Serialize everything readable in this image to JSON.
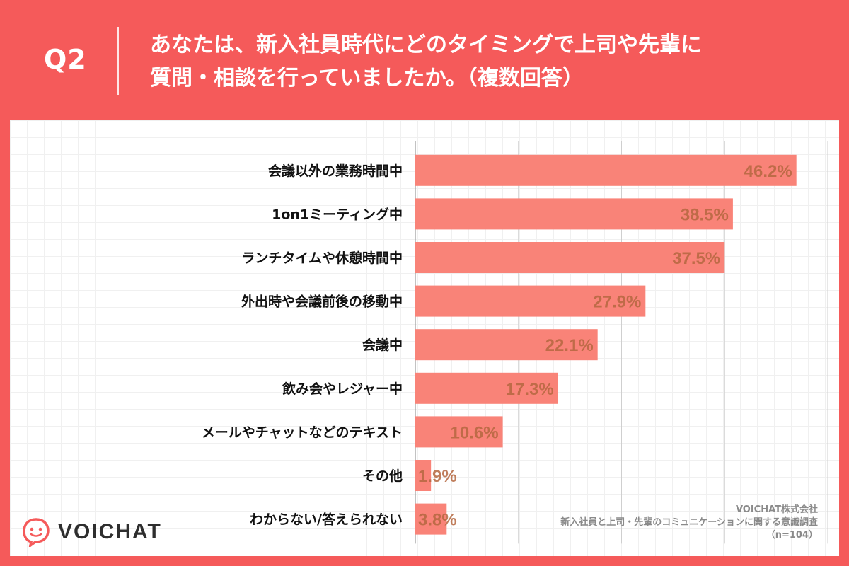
{
  "header": {
    "question_number": "Q2",
    "question_line1": "あなたは、新入社員時代にどのタイミングで上司や先輩に",
    "question_line2": "質問・相談を行っていましたか。（複数回答）"
  },
  "colors": {
    "background": "#f55a5a",
    "bar": "#f98378",
    "value_label": "#b5673f",
    "logo_accent": "#f55a5a"
  },
  "chart_data": {
    "type": "bar",
    "orientation": "horizontal",
    "categories": [
      "会議以外の業務時間中",
      "1on1ミーティング中",
      "ランチタイムや休憩時間中",
      "外出時や会議前後の移動中",
      "会議中",
      "飲み会やレジャー中",
      "メールやチャットなどのテキスト",
      "その他",
      "わからない/答えられない"
    ],
    "values": [
      46.2,
      38.5,
      37.5,
      27.9,
      22.1,
      17.3,
      10.6,
      1.9,
      3.8
    ],
    "value_labels": [
      "46.2%",
      "38.5%",
      "37.5%",
      "27.9%",
      "22.1%",
      "17.3%",
      "10.6%",
      "1.9%",
      "3.8%"
    ],
    "unit": "%",
    "xlim": [
      0,
      50
    ],
    "grid_step": 12.5,
    "title": "",
    "xlabel": "",
    "ylabel": ""
  },
  "logo": {
    "name": "VOICHAT",
    "icon": "chat-bubble-face-icon"
  },
  "source": {
    "company": "VOICHAT株式会社",
    "survey": "新入社員と上司・先輩のコミュニケーションに関する意識調査",
    "sample": "（n=104）"
  }
}
